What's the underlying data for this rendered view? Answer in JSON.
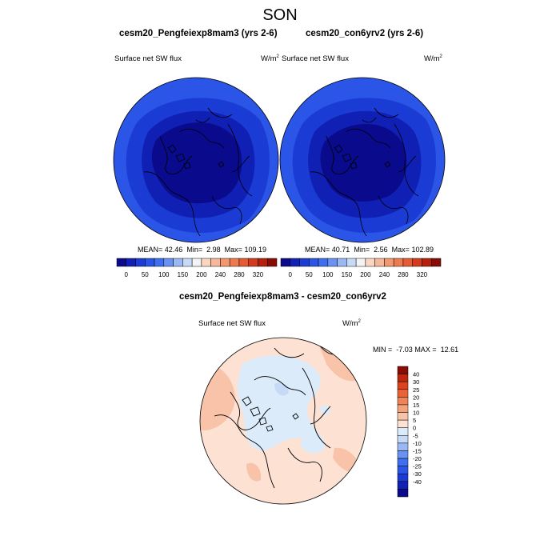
{
  "figure_title": "SON",
  "panels": [
    {
      "title": "cesm20_Pengfeiexp8mam3 (yrs 2-6)",
      "variable": "Surface net SW flux",
      "units": "W/m",
      "units_exp": "2",
      "stats": {
        "mean_label": "MEAN=",
        "mean": "42.46",
        "min_label": "Min=",
        "min": "2.98",
        "max_label": "Max=",
        "max": "109.19"
      }
    },
    {
      "title": "cesm20_con6yrv2 (yrs 2-6)",
      "variable": "Surface net SW flux",
      "units": "W/m",
      "units_exp": "2",
      "stats": {
        "mean_label": "MEAN=",
        "mean": "40.71",
        "min_label": "Min=",
        "min": "2.56",
        "max_label": "Max=",
        "max": "102.89"
      }
    }
  ],
  "diff_panel": {
    "title": "cesm20_Pengfeiexp8mam3 - cesm20_con6yrv2",
    "variable": "Surface net SW flux",
    "units": "W/m",
    "units_exp": "2",
    "stats": {
      "min_label": "MIN =",
      "min": "-7.03",
      "max_label": "MAX =",
      "max": "12.61"
    }
  },
  "horizontal_colorbar": {
    "colors": [
      "#0a0a8c",
      "#1020b4",
      "#1a3cd4",
      "#2a55e6",
      "#3f6ef0",
      "#6a92f2",
      "#9ab8f4",
      "#c6daf8",
      "#f4f4f4",
      "#fbd7c2",
      "#f6b89a",
      "#f29870",
      "#ee7a50",
      "#e65a34",
      "#d43a1e",
      "#b4200c",
      "#8a0a04"
    ],
    "tick_labels": [
      "0",
      "50",
      "100",
      "150",
      "200",
      "240",
      "280",
      "320"
    ]
  },
  "vertical_colorbar": {
    "colors": [
      "#0a0a8c",
      "#1020b4",
      "#1a3cd4",
      "#2a55e6",
      "#3f6ef0",
      "#6a92f2",
      "#9ab8f4",
      "#c6daf8",
      "#dcebfa",
      "#fde2d4",
      "#f8c3a8",
      "#f4a27c",
      "#f08258",
      "#ea6236",
      "#dc421e",
      "#be260e",
      "#8a0a04"
    ],
    "tick_labels": [
      "40",
      "30",
      "25",
      "20",
      "15",
      "10",
      "5",
      "0",
      "-5",
      "-10",
      "-15",
      "-20",
      "-25",
      "-30",
      "-40"
    ]
  },
  "map_colors": {
    "sw_outer": "#2a55e6",
    "sw_ring1": "#1a3cd4",
    "sw_ring2": "#1020b4",
    "sw_center": "#0a0a8c",
    "diff_base": "#fde2d4",
    "diff_warm": "#f8c3a8",
    "diff_cool": "#dcebfa",
    "diff_cool2": "#c6daf8"
  }
}
